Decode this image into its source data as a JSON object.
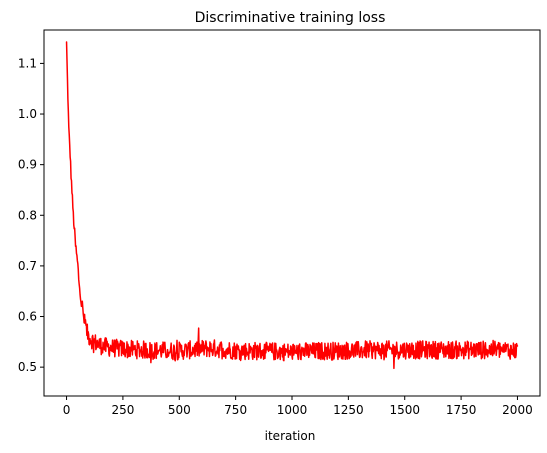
{
  "chart_data": {
    "type": "line",
    "title": "Discriminative training loss",
    "xlabel": "iteration",
    "ylabel": "",
    "xlim": [
      -100,
      2100
    ],
    "ylim": [
      0.443,
      1.166
    ],
    "xticks": [
      0,
      250,
      500,
      750,
      1000,
      1250,
      1500,
      1750,
      2000
    ],
    "yticks": [
      0.5,
      0.6,
      0.7,
      0.8,
      0.9,
      1.0,
      1.1
    ],
    "ytick_labels": [
      "0.5",
      "0.6",
      "0.7",
      "0.8",
      "0.9",
      "1.0",
      "1.1"
    ],
    "grid": false,
    "legend": "none",
    "line_color": "#ff0000",
    "series": [
      {
        "x": [
          0,
          5,
          10,
          15,
          20,
          25,
          30,
          35,
          40,
          45,
          50,
          55,
          60,
          65,
          70,
          75,
          80,
          85,
          90,
          95,
          100,
          110,
          120,
          130,
          140,
          150,
          175,
          200,
          225,
          250,
          275,
          300,
          325,
          350,
          375,
          400,
          425,
          450,
          475,
          500,
          525,
          550,
          575,
          600,
          625,
          650,
          675,
          700,
          725,
          750,
          775,
          800,
          825,
          850,
          875,
          900,
          925,
          950,
          975,
          1000,
          1025,
          1050,
          1075,
          1100,
          1125,
          1150,
          1175,
          1200,
          1225,
          1250,
          1275,
          1300,
          1325,
          1350,
          1375,
          1400,
          1425,
          1450,
          1475,
          1500,
          1525,
          1550,
          1575,
          1600,
          1625,
          1650,
          1675,
          1700,
          1725,
          1750,
          1775,
          1800,
          1825,
          1850,
          1875,
          1900,
          1925,
          1950,
          1975,
          2000
        ],
        "y": [
          1.14,
          1.05,
          0.97,
          0.93,
          0.88,
          0.84,
          0.8,
          0.77,
          0.74,
          0.72,
          0.7,
          0.67,
          0.65,
          0.63,
          0.62,
          0.6,
          0.59,
          0.58,
          0.57,
          0.565,
          0.56,
          0.555,
          0.55,
          0.548,
          0.545,
          0.543,
          0.54,
          0.538,
          0.537,
          0.536,
          0.535,
          0.535,
          0.534,
          0.534,
          0.533,
          0.533,
          0.533,
          0.532,
          0.532,
          0.532,
          0.533,
          0.534,
          0.535,
          0.536,
          0.537,
          0.537,
          0.536,
          0.535,
          0.534,
          0.533,
          0.533,
          0.532,
          0.532,
          0.532,
          0.531,
          0.531,
          0.531,
          0.531,
          0.53,
          0.53,
          0.53,
          0.531,
          0.531,
          0.531,
          0.532,
          0.532,
          0.532,
          0.532,
          0.533,
          0.533,
          0.533,
          0.533,
          0.534,
          0.534,
          0.534,
          0.534,
          0.534,
          0.534,
          0.534,
          0.534,
          0.534,
          0.534,
          0.534,
          0.534,
          0.534,
          0.534,
          0.534,
          0.534,
          0.534,
          0.534,
          0.534,
          0.534,
          0.534,
          0.534,
          0.534,
          0.535,
          0.534,
          0.534,
          0.533,
          0.533
        ],
        "noise_amplitude": 0.018,
        "min_value": 0.475,
        "max_value_after_convergence": 0.58
      }
    ]
  }
}
